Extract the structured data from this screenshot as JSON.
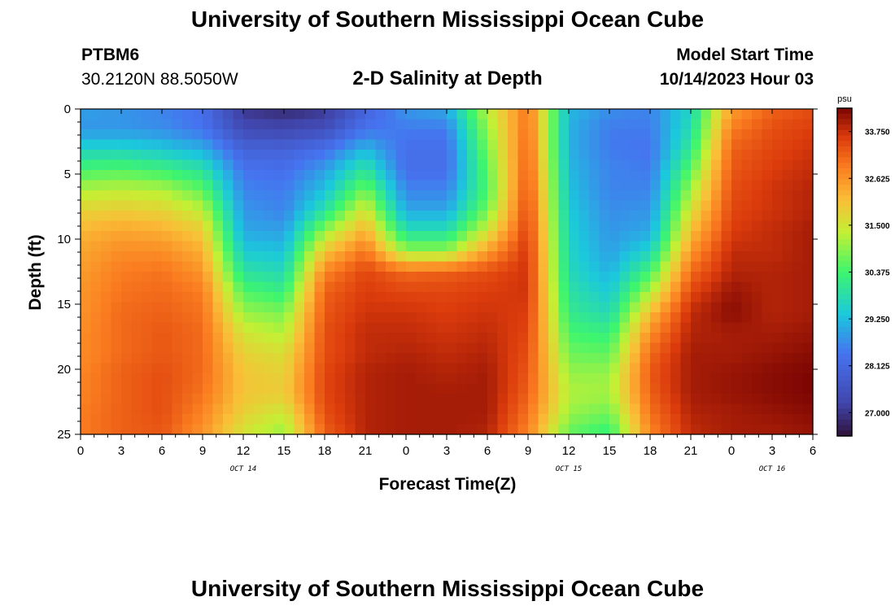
{
  "header": {
    "title": "University of Southern Mississippi Ocean Cube",
    "station": "PTBM6",
    "coords": "30.2120N  88.5050W",
    "subtitle": "2-D Salinity at Depth",
    "start_label": "Model Start Time",
    "start_value": "10/14/2023 Hour 03"
  },
  "footer": {
    "title": "University of Southern Mississippi Ocean Cube"
  },
  "chart_data": {
    "type": "heatmap",
    "title": "2-D Salinity at Depth",
    "xlabel": "Forecast Time(Z)",
    "ylabel": "Depth (ft)",
    "x_ticks": [
      "0",
      "3",
      "6",
      "9",
      "12",
      "15",
      "18",
      "21",
      "0",
      "3",
      "6",
      "9",
      "12",
      "15",
      "18",
      "21",
      "0",
      "3",
      "6"
    ],
    "x_range_hours": [
      0,
      54
    ],
    "y_ticks": [
      "0",
      "5",
      "10",
      "15",
      "20",
      "25"
    ],
    "y_range_ft": [
      0,
      25
    ],
    "date_labels": [
      {
        "text": "OCT 14",
        "hour": 12
      },
      {
        "text": "OCT 15",
        "hour": 36
      },
      {
        "text": "OCT 16",
        "hour": 51
      }
    ],
    "colorbar": {
      "unit": "psu",
      "min": 26.44,
      "max": 34.31,
      "labels": [
        "33.750",
        "32.625",
        "31.500",
        "30.375",
        "29.250",
        "28.125",
        "27.000"
      ],
      "label_values": [
        33.75,
        32.625,
        31.5,
        30.375,
        29.25,
        28.125,
        27.0
      ]
    },
    "grid": {
      "rows": 17,
      "cols": 19,
      "row_depths_ft": [
        0,
        1.5625,
        3.125,
        4.6875,
        6.25,
        7.8125,
        9.375,
        10.9375,
        12.5,
        14.0625,
        15.625,
        17.1875,
        18.75,
        20.3125,
        21.875,
        23.4375,
        25
      ],
      "col_hours": [
        0,
        3,
        6,
        9,
        12,
        15,
        18,
        21,
        24,
        27,
        30,
        33,
        36,
        39,
        42,
        45,
        48,
        51,
        54
      ],
      "salinity_psu": [
        [
          28.9,
          28.8,
          28.6,
          28.3,
          27.0,
          26.8,
          27.0,
          28.0,
          28.8,
          29.0,
          31.3,
          33.0,
          29.2,
          28.7,
          28.6,
          29.6,
          32.5,
          33.2,
          33.4
        ],
        [
          28.8,
          28.8,
          28.7,
          28.4,
          27.4,
          27.3,
          27.5,
          28.4,
          28.5,
          28.5,
          31.0,
          33.1,
          29.1,
          28.5,
          28.5,
          29.8,
          32.9,
          33.4,
          33.6
        ],
        [
          29.6,
          29.6,
          29.4,
          29.1,
          28.0,
          28.0,
          28.3,
          29.2,
          28.3,
          28.3,
          30.8,
          33.2,
          29.1,
          28.5,
          28.4,
          30.1,
          33.2,
          33.5,
          33.7
        ],
        [
          30.4,
          30.5,
          30.3,
          29.9,
          28.4,
          28.3,
          28.9,
          30.0,
          28.3,
          28.3,
          30.6,
          33.3,
          29.2,
          28.6,
          28.5,
          30.6,
          33.3,
          33.6,
          33.8
        ],
        [
          31.2,
          31.3,
          31.2,
          30.6,
          28.6,
          28.5,
          29.3,
          30.8,
          28.6,
          28.6,
          30.5,
          33.4,
          29.3,
          28.6,
          28.6,
          31.1,
          33.4,
          33.7,
          33.9
        ],
        [
          31.8,
          31.9,
          31.8,
          31.3,
          28.8,
          28.6,
          29.9,
          31.6,
          29.0,
          29.0,
          30.8,
          33.5,
          29.4,
          28.7,
          28.8,
          31.6,
          33.5,
          33.7,
          33.9
        ],
        [
          32.2,
          32.4,
          32.3,
          31.9,
          29.0,
          28.9,
          31.0,
          32.3,
          29.8,
          29.8,
          31.5,
          33.6,
          29.5,
          28.8,
          29.0,
          32.1,
          33.6,
          33.8,
          34.0
        ],
        [
          32.4,
          32.7,
          32.7,
          32.3,
          29.4,
          29.3,
          32.0,
          33.0,
          31.0,
          31.0,
          32.5,
          33.7,
          29.6,
          28.9,
          29.6,
          32.6,
          33.8,
          33.8,
          34.0
        ],
        [
          32.5,
          32.9,
          33.0,
          32.6,
          29.9,
          29.7,
          32.8,
          33.5,
          33.1,
          33.2,
          33.4,
          33.7,
          29.7,
          29.1,
          30.4,
          33.1,
          33.9,
          33.9,
          34.0
        ],
        [
          32.6,
          33.0,
          33.1,
          32.9,
          30.5,
          30.2,
          33.2,
          33.6,
          33.5,
          33.5,
          33.6,
          33.7,
          29.9,
          29.4,
          31.2,
          33.5,
          34.1,
          33.9,
          34.0
        ],
        [
          32.6,
          33.1,
          33.2,
          33.0,
          31.0,
          30.8,
          33.3,
          33.7,
          33.7,
          33.6,
          33.7,
          33.6,
          30.1,
          29.7,
          32.1,
          33.8,
          34.2,
          33.9,
          34.0
        ],
        [
          32.7,
          33.1,
          33.3,
          33.1,
          31.5,
          31.2,
          33.4,
          33.8,
          33.8,
          33.7,
          33.8,
          33.5,
          30.4,
          30.2,
          32.7,
          33.9,
          34.0,
          34.0,
          34.1
        ],
        [
          32.7,
          33.1,
          33.3,
          33.1,
          31.8,
          31.6,
          33.4,
          33.8,
          33.9,
          33.8,
          33.9,
          33.4,
          30.7,
          30.6,
          33.1,
          34.0,
          34.0,
          34.1,
          34.2
        ],
        [
          32.8,
          33.2,
          33.4,
          33.1,
          32.0,
          31.8,
          33.5,
          33.9,
          34.0,
          33.9,
          34.0,
          33.3,
          31.0,
          31.0,
          33.3,
          34.0,
          34.1,
          34.2,
          34.3
        ],
        [
          32.8,
          33.2,
          33.4,
          33.0,
          32.0,
          31.9,
          33.5,
          33.9,
          34.0,
          34.0,
          34.0,
          33.2,
          31.2,
          31.1,
          33.2,
          34.0,
          34.1,
          34.2,
          34.3
        ],
        [
          32.9,
          33.2,
          33.4,
          32.8,
          31.8,
          31.4,
          33.4,
          33.9,
          34.0,
          34.0,
          34.0,
          33.0,
          31.0,
          30.7,
          33.0,
          33.9,
          34.0,
          34.1,
          34.2
        ],
        [
          32.9,
          33.2,
          33.3,
          32.6,
          31.5,
          31.0,
          33.2,
          33.9,
          34.0,
          34.0,
          33.9,
          32.8,
          30.6,
          30.2,
          32.8,
          33.8,
          34.0,
          34.0,
          34.1
        ]
      ]
    }
  }
}
